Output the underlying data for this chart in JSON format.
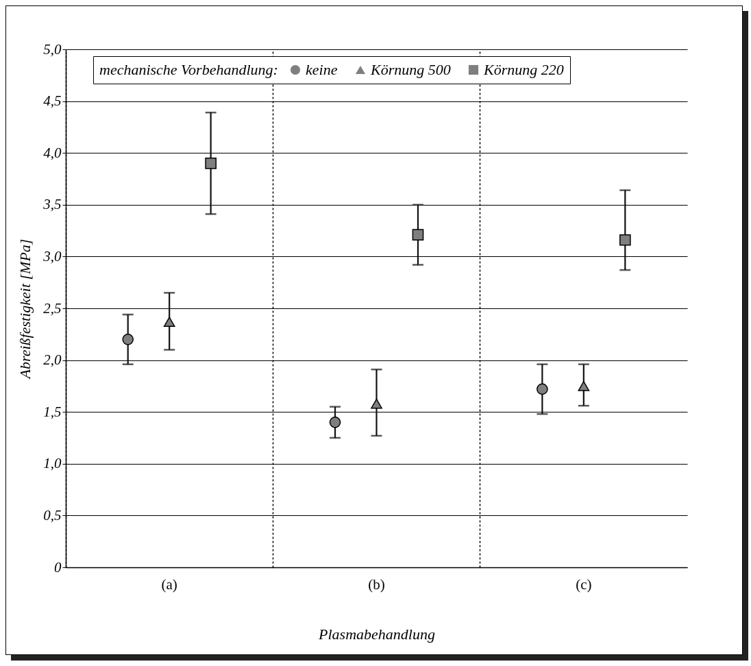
{
  "chart_data": {
    "type": "scatter",
    "xlabel": "Plasmabehandlung",
    "ylabel": "Abreißfestigkeit [MPa]",
    "legend_title": "mechanische Vorbehandlung:",
    "categories": [
      "(a)",
      "(b)",
      "(c)"
    ],
    "series": [
      {
        "name": "keine",
        "color": "#7f7f7f",
        "marker": "circle",
        "values": [
          2.2,
          1.4,
          1.72
        ],
        "errors": [
          [
            1.96,
            2.44
          ],
          [
            1.25,
            1.55
          ],
          [
            1.48,
            1.96
          ]
        ]
      },
      {
        "name": "Körnung 500",
        "color": "#7f7f7f",
        "marker": "triangle",
        "values": [
          2.37,
          1.58,
          1.75
        ],
        "errors": [
          [
            2.1,
            2.65
          ],
          [
            1.27,
            1.91
          ],
          [
            1.56,
            1.96
          ]
        ]
      },
      {
        "name": "Körnung 220",
        "color": "#7f7f7f",
        "marker": "square",
        "values": [
          3.9,
          3.21,
          3.16
        ],
        "errors": [
          [
            3.41,
            4.39
          ],
          [
            2.92,
            3.5
          ],
          [
            2.87,
            3.64
          ]
        ]
      }
    ],
    "ylim": [
      0,
      5
    ],
    "yticks": [
      0,
      {
        "value": 0.5,
        "label": "0,5"
      },
      {
        "value": 1,
        "label": "1,0"
      },
      {
        "value": 1.5,
        "label": "1,5"
      },
      {
        "value": 2,
        "label": "2,0"
      },
      {
        "value": 2.5,
        "label": "2,5"
      },
      {
        "value": 3,
        "label": "3,0"
      },
      {
        "value": 3.5,
        "label": "3,5"
      },
      {
        "value": 4,
        "label": "4,0"
      },
      {
        "value": 4.5,
        "label": "4,5"
      },
      {
        "value": 5,
        "label": "5,0"
      }
    ],
    "grid": true,
    "legend": "top"
  }
}
